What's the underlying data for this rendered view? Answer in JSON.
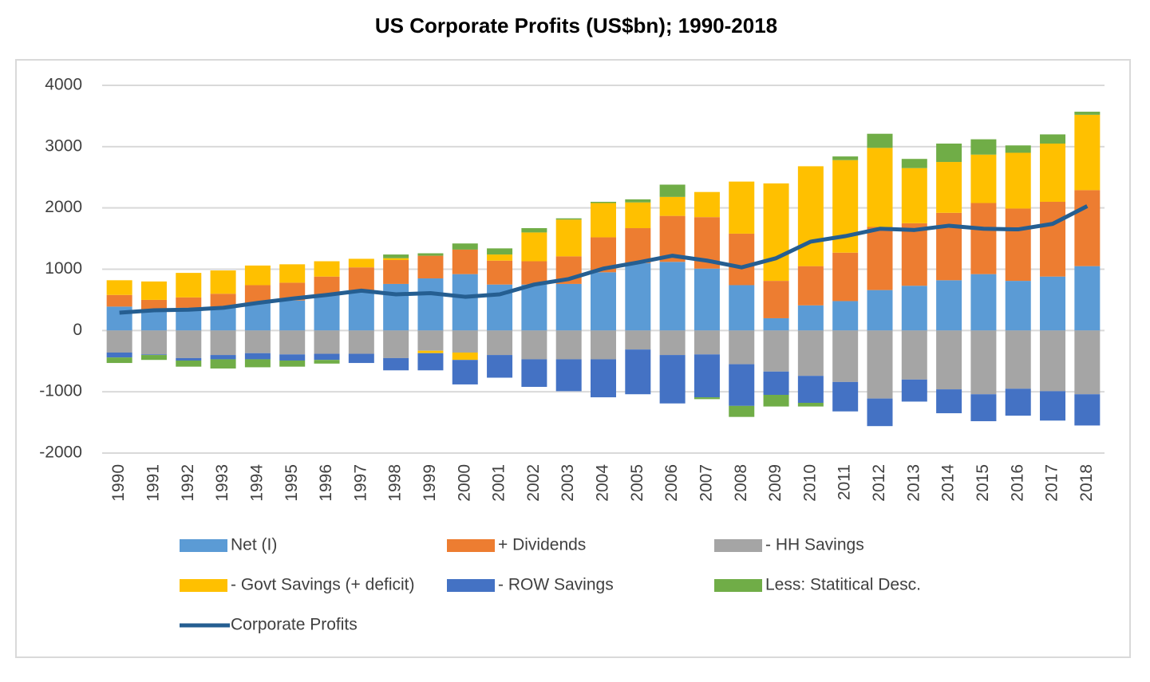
{
  "chart_data": {
    "type": "bar",
    "stacked": true,
    "title": "US Corporate Profits (US$bn); 1990-2018",
    "categories": [
      "1990",
      "1991",
      "1992",
      "1993",
      "1994",
      "1995",
      "1996",
      "1997",
      "1998",
      "1999",
      "2000",
      "2001",
      "2002",
      "2003",
      "2004",
      "2005",
      "2006",
      "2007",
      "2008",
      "2009",
      "2010",
      "2011",
      "2012",
      "2013",
      "2014",
      "2015",
      "2016",
      "2017",
      "2018"
    ],
    "series": [
      {
        "name": "Net (I)",
        "color": "#5b9bd5",
        "values": [
          390,
          330,
          370,
          370,
          450,
          490,
          570,
          650,
          760,
          850,
          920,
          750,
          750,
          760,
          950,
          1100,
          1120,
          1010,
          740,
          200,
          410,
          480,
          660,
          730,
          820,
          920,
          810,
          880,
          1050
        ]
      },
      {
        "name": "+ Dividends",
        "color": "#ed7d31",
        "values": [
          190,
          170,
          170,
          230,
          290,
          290,
          310,
          380,
          390,
          370,
          400,
          390,
          380,
          450,
          570,
          570,
          750,
          840,
          840,
          610,
          640,
          790,
          1030,
          1020,
          1100,
          1160,
          1180,
          1220,
          1240
        ]
      },
      {
        "name": "- HH Savings",
        "color": "#a5a5a5",
        "values": [
          -360,
          -390,
          -450,
          -400,
          -370,
          -390,
          -380,
          -380,
          -450,
          -330,
          -360,
          -400,
          -470,
          -470,
          -470,
          -310,
          -400,
          -390,
          -550,
          -670,
          -740,
          -840,
          -1110,
          -800,
          -960,
          -1040,
          -950,
          -990,
          -1040
        ]
      },
      {
        "name": "- Govt Savings (+ deficit)",
        "color": "#ffc000",
        "values": [
          240,
          300,
          400,
          380,
          320,
          300,
          250,
          140,
          30,
          -40,
          -120,
          100,
          470,
          600,
          560,
          420,
          310,
          410,
          850,
          1590,
          1630,
          1510,
          1290,
          900,
          830,
          790,
          910,
          950,
          1230
        ]
      },
      {
        "name": "- ROW Savings",
        "color": "#4472c4",
        "values": [
          -80,
          -10,
          -40,
          -70,
          -100,
          -100,
          -100,
          -150,
          -200,
          -280,
          -400,
          -370,
          -450,
          -520,
          -620,
          -730,
          -790,
          -700,
          -680,
          -380,
          -440,
          -480,
          -450,
          -360,
          -390,
          -440,
          -440,
          -480,
          -510
        ]
      },
      {
        "name": "Less: Statitical Desc.",
        "color": "#70ad47",
        "values": [
          -90,
          -80,
          -100,
          -150,
          -130,
          -100,
          -60,
          0,
          60,
          40,
          100,
          100,
          70,
          20,
          20,
          50,
          200,
          -30,
          -180,
          -190,
          -60,
          60,
          230,
          150,
          300,
          250,
          120,
          150,
          50
        ]
      },
      {
        "name": "Corporate Profits",
        "type": "line",
        "color": "#255e91",
        "values": [
          290,
          330,
          340,
          370,
          450,
          520,
          580,
          650,
          590,
          610,
          550,
          590,
          750,
          840,
          1010,
          1110,
          1220,
          1140,
          1030,
          1180,
          1450,
          1540,
          1660,
          1640,
          1710,
          1660,
          1650,
          1740,
          2030
        ]
      }
    ],
    "ylim": [
      -2000,
      4000
    ],
    "yticks": [
      -2000,
      -1000,
      0,
      1000,
      2000,
      3000,
      4000
    ],
    "grid": true
  }
}
